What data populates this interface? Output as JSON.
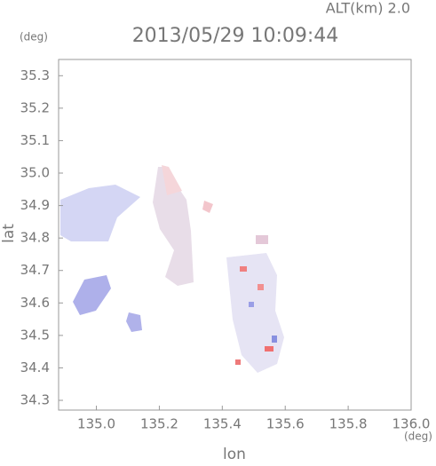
{
  "chart_data": {
    "type": "map",
    "title": "2013/05/29 10:09:44",
    "subtitle": "ALT(km) 2.0",
    "x_label": "lon",
    "y_label": "lat",
    "x_unit": "(deg)",
    "y_unit": "(deg)",
    "xlim": [
      134.88,
      136.0
    ],
    "ylim": [
      34.27,
      35.35
    ],
    "xticks": [
      {
        "value": 135.0,
        "label": "135.0"
      },
      135.2,
      135.4,
      135.6,
      135.8,
      {
        "value": 136.0,
        "label": "136.0"
      }
    ],
    "yticks": [
      35.3,
      35.2,
      35.1,
      {
        "value": 35.0,
        "label": "35.0"
      },
      34.9,
      34.8,
      34.7,
      34.6,
      34.5,
      34.4,
      34.3
    ]
  }
}
